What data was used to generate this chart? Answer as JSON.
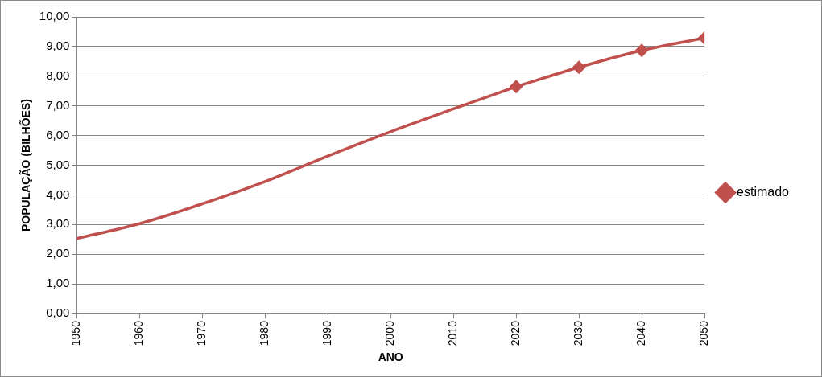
{
  "chart_data": {
    "type": "line",
    "xlabel": "ANO",
    "ylabel": "POPULAÇÃO (BILHÕES)",
    "series": [
      {
        "color": "#c0504d",
        "marker": "none",
        "x": [
          1950,
          1960,
          1970,
          1980,
          1990,
          2000,
          2010,
          2020
        ],
        "values": [
          2.53,
          3.03,
          3.7,
          4.45,
          5.31,
          6.13,
          6.9,
          7.65
        ]
      },
      {
        "name": "estimado",
        "color": "#c0504d",
        "marker": "diamond",
        "x": [
          2020,
          2030,
          2040,
          2050
        ],
        "values": [
          7.65,
          8.3,
          8.87,
          9.29
        ]
      }
    ],
    "xlim": [
      1950,
      2050
    ],
    "xticks": [
      1950,
      1960,
      1970,
      1980,
      1990,
      2000,
      2010,
      2020,
      2030,
      2040,
      2050
    ],
    "ylim": [
      0,
      10
    ],
    "yticks": [
      {
        "value": 0,
        "label": "0,00"
      },
      {
        "value": 1,
        "label": "1,00"
      },
      {
        "value": 2,
        "label": "2,00"
      },
      {
        "value": 3,
        "label": "3,00"
      },
      {
        "value": 4,
        "label": "4,00"
      },
      {
        "value": 5,
        "label": "5,00"
      },
      {
        "value": 6,
        "label": "6,00"
      },
      {
        "value": 7,
        "label": "7,00"
      },
      {
        "value": 8,
        "label": "8,00"
      },
      {
        "value": 9,
        "label": "9,00"
      },
      {
        "value": 10,
        "label": "10,00"
      }
    ],
    "grid": "y",
    "legend": "right",
    "line_style": "solid"
  }
}
